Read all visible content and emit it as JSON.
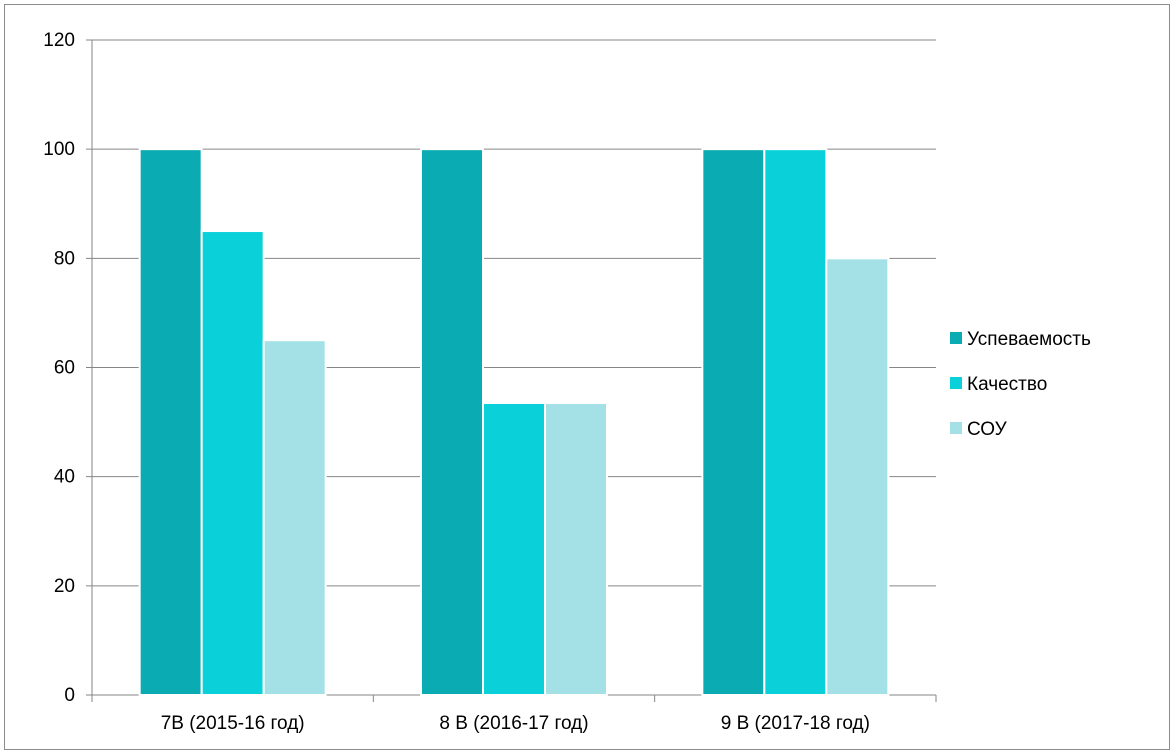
{
  "chart_data": {
    "type": "bar",
    "categories": [
      "7В (2015-16 год)",
      "8 В (2016-17 год)",
      "9 В (2017-18 год)"
    ],
    "series": [
      {
        "name": "Успеваемость",
        "values": [
          100,
          100,
          100
        ],
        "color": "#0aabb2"
      },
      {
        "name": "Качество",
        "values": [
          85,
          53.5,
          100
        ],
        "color": "#0ad1d9"
      },
      {
        "name": "СОУ",
        "values": [
          65,
          53.5,
          80
        ],
        "color": "#a3e1e6"
      }
    ],
    "ylim": [
      0,
      120
    ],
    "yticks": [
      "0",
      "20",
      "40",
      "60",
      "80",
      "100",
      "120"
    ],
    "grid": true,
    "legend_position": "right"
  }
}
